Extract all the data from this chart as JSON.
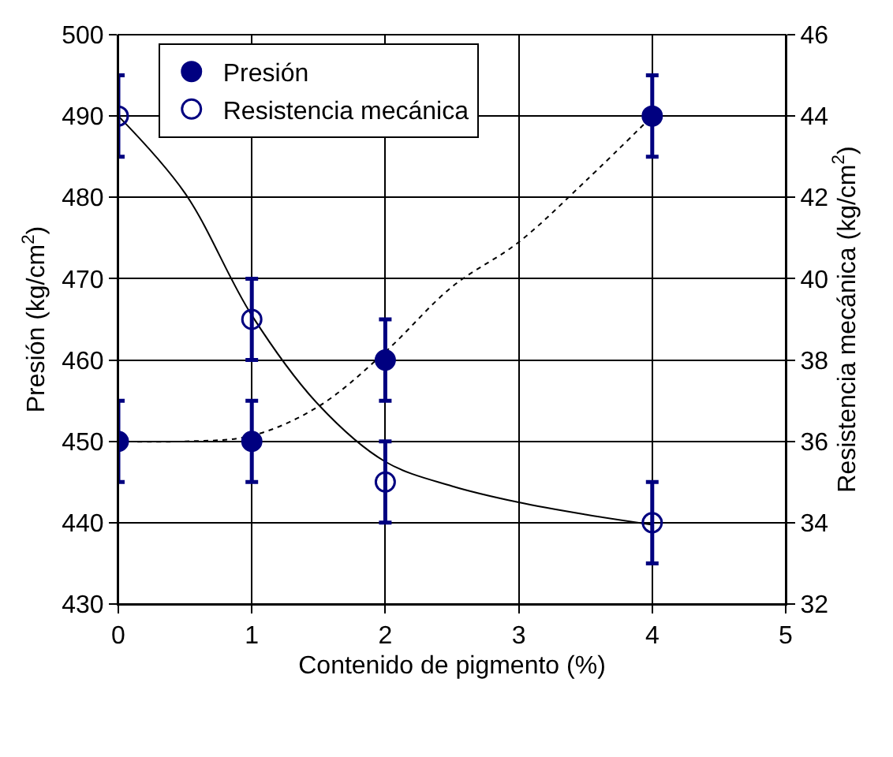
{
  "chart_data": {
    "type": "scatter",
    "xlabel": "Contenido de pigmento (%)",
    "ylabel": "Presión (kg/cm$^{2}$)",
    "y2label": "Resistencia mecánica (kg/cm$^{2}$)",
    "xlim": [
      0,
      5
    ],
    "xticks": [
      0,
      1,
      2,
      3,
      4,
      5
    ],
    "ylim": [
      430,
      500
    ],
    "yticks": [
      430,
      440,
      450,
      460,
      470,
      480,
      490,
      500
    ],
    "y2lim": [
      32,
      46
    ],
    "y2ticks": [
      32,
      34,
      36,
      38,
      40,
      42,
      44,
      46
    ],
    "grid": true,
    "legend": "top left",
    "series": [
      {
        "type": "line",
        "x": [
          0,
          0.5,
          1,
          1.5,
          2,
          2.5,
          3,
          3.5,
          4
        ],
        "values": [
          450,
          450,
          450.7,
          454.3,
          461,
          469,
          474.5,
          482,
          490
        ],
        "color": "#000000",
        "line_style": "dotted",
        "marker": "none"
      },
      {
        "type": "line",
        "axis": "y2",
        "x": [
          0,
          0.5,
          1,
          1.5,
          2,
          2.5,
          3,
          3.5,
          4
        ],
        "values": [
          44,
          42.1,
          39.1,
          36.9,
          35.5,
          34.9,
          34.5,
          34.2,
          33.95
        ],
        "color": "#000000",
        "line_style": "solid",
        "marker": "none"
      },
      {
        "name": "Presión",
        "x": [
          0,
          1,
          2,
          4
        ],
        "values": [
          450,
          450,
          460,
          490
        ],
        "errors": [
          5,
          5,
          5,
          5
        ],
        "color": "#000080",
        "marker": "circle"
      },
      {
        "name": "Resistencia mecánica",
        "axis": "y2",
        "x": [
          0,
          1,
          2,
          4
        ],
        "values": [
          44,
          39,
          35,
          34
        ],
        "errors": [
          1,
          1,
          1,
          1
        ],
        "color": "#000080",
        "marker": "circle-open"
      }
    ]
  }
}
